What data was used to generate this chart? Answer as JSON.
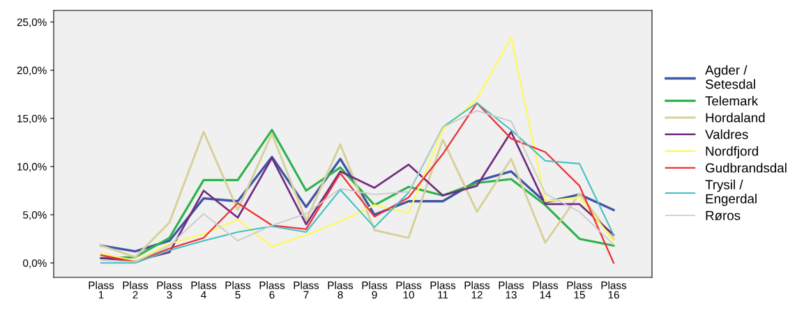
{
  "chart_data": {
    "type": "line",
    "categories": [
      "Plass\n1",
      "Plass\n2",
      "Plass\n3",
      "Plass\n4",
      "Plass\n5",
      "Plass\n6",
      "Plass\n7",
      "Plass\n8",
      "Plass\n9",
      "Plass\n10",
      "Plass\n11",
      "Plass\n12",
      "Plass\n13",
      "Plass\n14",
      "Plass\n15",
      "Plass\n16"
    ],
    "ylim": [
      -1.5,
      26.2
    ],
    "yticks": [
      {
        "value": 0,
        "label": "0,0%"
      },
      {
        "value": 5,
        "label": "5,0%"
      },
      {
        "value": 10,
        "label": "10,0%"
      },
      {
        "value": 15,
        "label": "15,0%"
      },
      {
        "value": 20,
        "label": "20,0%"
      },
      {
        "value": 25,
        "label": "25,0%"
      }
    ],
    "grid": false,
    "legend": "right",
    "marker": "none",
    "line_style": "solid",
    "series": [
      {
        "name": "Agder /\nSetesdal",
        "color": "#3f55a6",
        "values": [
          1.8,
          1.2,
          2.3,
          6.7,
          6.4,
          11.0,
          5.8,
          10.8,
          5.0,
          6.4,
          6.4,
          8.5,
          9.5,
          6.3,
          7.1,
          5.5
        ]
      },
      {
        "name": "Telemark",
        "color": "#2db24a",
        "values": [
          0.5,
          0.6,
          2.6,
          8.6,
          8.6,
          13.8,
          7.5,
          9.9,
          6.0,
          7.9,
          7.0,
          8.3,
          8.7,
          6.0,
          2.5,
          1.8
        ]
      },
      {
        "name": "Hordaland",
        "color": "#d6d09a",
        "values": [
          1.8,
          0.6,
          4.2,
          13.6,
          5.5,
          13.4,
          4.4,
          12.3,
          3.4,
          2.6,
          12.8,
          5.3,
          10.8,
          2.1,
          7.2,
          2.5
        ]
      },
      {
        "name": "Valdres",
        "color": "#722b7e",
        "values": [
          0.5,
          0.2,
          1.1,
          7.5,
          4.7,
          10.9,
          4.0,
          9.5,
          7.8,
          10.2,
          7.0,
          8.0,
          13.6,
          6.1,
          6.1,
          2.9
        ]
      },
      {
        "name": "Nordfjord",
        "color": "#fdf86a",
        "values": [
          1.0,
          0.2,
          2.0,
          3.0,
          4.5,
          1.7,
          2.9,
          4.3,
          6.0,
          5.2,
          13.8,
          17.0,
          23.4,
          6.4,
          6.8,
          2.3
        ]
      },
      {
        "name": "Gudbrandsdal",
        "color": "#ee3135",
        "values": [
          0.8,
          0.1,
          1.5,
          2.6,
          6.2,
          3.9,
          3.5,
          9.3,
          4.8,
          6.8,
          11.3,
          16.6,
          12.9,
          11.5,
          8.0,
          0.0
        ]
      },
      {
        "name": "Trysil /\nEngerdal",
        "color": "#43c0c3",
        "values": [
          0.0,
          0.0,
          1.3,
          2.3,
          3.2,
          3.8,
          3.2,
          7.6,
          3.7,
          7.3,
          14.1,
          16.6,
          13.8,
          10.6,
          10.3,
          2.9
        ]
      },
      {
        "name": "Røros",
        "color": "#cccccc",
        "values": [
          0.3,
          0.1,
          1.8,
          5.1,
          2.3,
          3.9,
          5.1,
          7.7,
          7.1,
          7.4,
          14.1,
          15.8,
          14.7,
          7.2,
          5.3,
          1.9
        ]
      }
    ]
  }
}
